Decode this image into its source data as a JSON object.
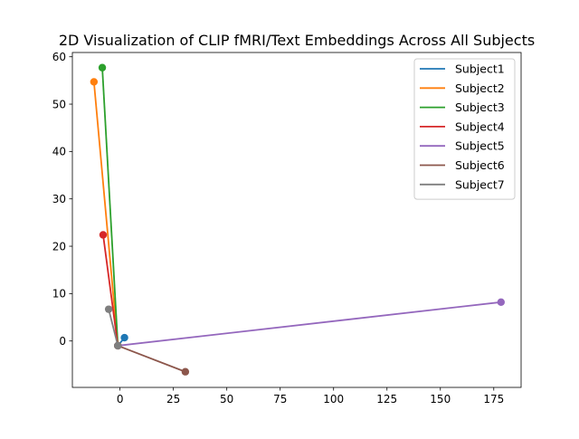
{
  "chart_data": {
    "type": "line",
    "title": "2D Visualization of CLIP fMRI/Text Embeddings Across All Subjects",
    "xlabel": "",
    "ylabel": "",
    "xlim": [
      -22.3,
      187.8
    ],
    "ylim": [
      -9.8,
      60.9
    ],
    "xticks": [
      0,
      25,
      50,
      75,
      100,
      125,
      150,
      175
    ],
    "yticks": [
      0,
      10,
      20,
      30,
      40,
      50,
      60
    ],
    "grid": false,
    "legend_position": "top-right",
    "series": [
      {
        "name": "Subject1",
        "color": "#1f77b4",
        "x": [
          2.1,
          -1.0
        ],
        "y": [
          0.7,
          -1.0
        ]
      },
      {
        "name": "Subject2",
        "color": "#ff7f0e",
        "x": [
          -12.2,
          -1.0
        ],
        "y": [
          54.7,
          -1.0
        ]
      },
      {
        "name": "Subject3",
        "color": "#2ca02c",
        "x": [
          -8.3,
          -1.0
        ],
        "y": [
          57.7,
          -1.0
        ]
      },
      {
        "name": "Subject4",
        "color": "#d62728",
        "x": [
          -7.9,
          -1.0
        ],
        "y": [
          22.4,
          -1.0
        ]
      },
      {
        "name": "Subject5",
        "color": "#9467bd",
        "x": [
          178.4,
          -1.0
        ],
        "y": [
          8.2,
          -1.0
        ]
      },
      {
        "name": "Subject6",
        "color": "#8c564b",
        "x": [
          30.6,
          -1.0
        ],
        "y": [
          -6.5,
          -1.0
        ]
      },
      {
        "name": "Subject7",
        "color": "#7f7f7f",
        "x": [
          -5.3,
          -1.0
        ],
        "y": [
          6.7,
          -1.0
        ]
      }
    ]
  }
}
